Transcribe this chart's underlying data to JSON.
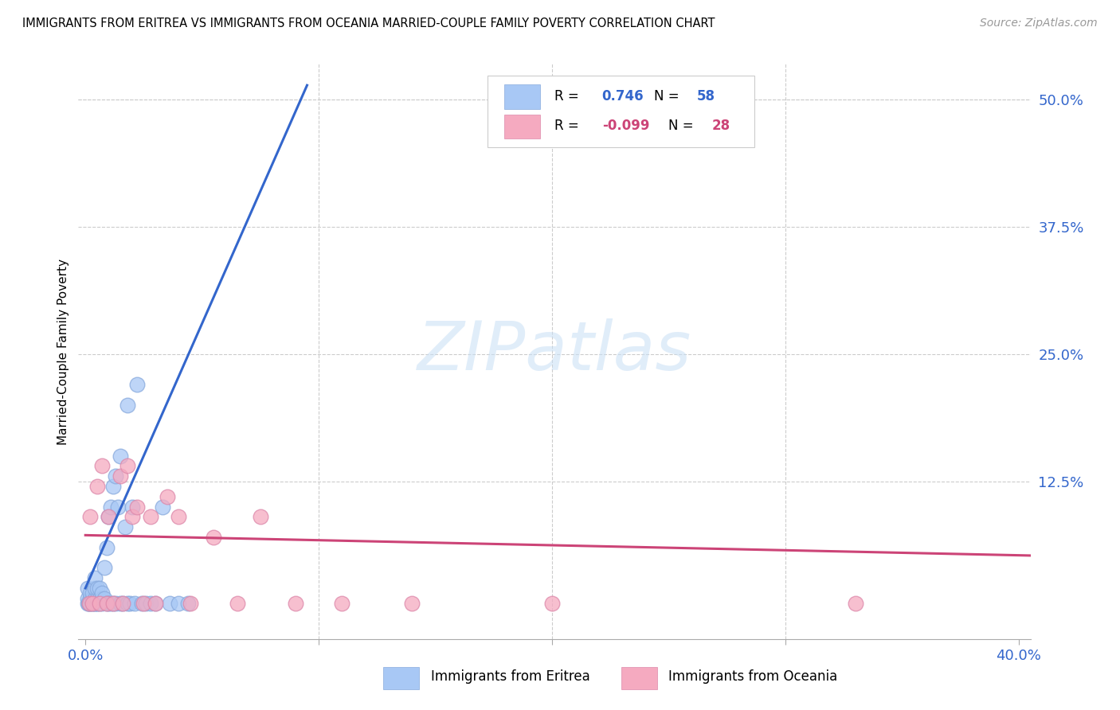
{
  "title": "IMMIGRANTS FROM ERITREA VS IMMIGRANTS FROM OCEANIA MARRIED-COUPLE FAMILY POVERTY CORRELATION CHART",
  "source": "Source: ZipAtlas.com",
  "ylabel": "Married-Couple Family Poverty",
  "xlim": [
    -0.003,
    0.405
  ],
  "ylim": [
    -0.03,
    0.535
  ],
  "xtick_positions": [
    0.0,
    0.1,
    0.2,
    0.3,
    0.4
  ],
  "xticklabels_show": [
    "0.0%",
    "",
    "",
    "",
    "40.0%"
  ],
  "ytick_right_positions": [
    0.0,
    0.125,
    0.25,
    0.375,
    0.5
  ],
  "ytick_right_labels": [
    "",
    "12.5%",
    "25.0%",
    "37.5%",
    "50.0%"
  ],
  "grid_color": "#cccccc",
  "background_color": "#ffffff",
  "watermark_text": "ZIPatlas",
  "legend_R_eritrea": "0.746",
  "legend_N_eritrea": "58",
  "legend_R_oceania": "-0.099",
  "legend_N_oceania": "28",
  "eritrea_color_face": "#a8c8f5",
  "eritrea_color_edge": "#88aadd",
  "oceania_color_face": "#f5aac0",
  "oceania_color_edge": "#dd88aa",
  "eritrea_line_color": "#3366cc",
  "oceania_line_color": "#cc4477",
  "legend_text_color_blue": "#3366cc",
  "legend_text_color_pink": "#cc4477",
  "tick_label_color": "#3366cc",
  "bottom_legend_label1": "Immigrants from Eritrea",
  "bottom_legend_label2": "Immigrants from Oceania",
  "eritrea_x": [
    0.0008,
    0.001,
    0.001,
    0.0012,
    0.0015,
    0.002,
    0.002,
    0.002,
    0.003,
    0.003,
    0.003,
    0.003,
    0.004,
    0.004,
    0.004,
    0.004,
    0.004,
    0.005,
    0.005,
    0.005,
    0.005,
    0.006,
    0.006,
    0.006,
    0.007,
    0.007,
    0.007,
    0.008,
    0.008,
    0.009,
    0.009,
    0.01,
    0.01,
    0.011,
    0.011,
    0.012,
    0.012,
    0.013,
    0.013,
    0.014,
    0.015,
    0.015,
    0.016,
    0.017,
    0.018,
    0.018,
    0.019,
    0.02,
    0.021,
    0.022,
    0.024,
    0.026,
    0.028,
    0.03,
    0.033,
    0.036,
    0.04,
    0.044
  ],
  "eritrea_y": [
    0.005,
    0.01,
    0.02,
    0.005,
    0.005,
    0.005,
    0.01,
    0.015,
    0.005,
    0.005,
    0.01,
    0.015,
    0.005,
    0.005,
    0.01,
    0.02,
    0.03,
    0.005,
    0.005,
    0.01,
    0.02,
    0.005,
    0.01,
    0.02,
    0.005,
    0.01,
    0.015,
    0.01,
    0.04,
    0.005,
    0.06,
    0.005,
    0.09,
    0.005,
    0.1,
    0.005,
    0.12,
    0.005,
    0.13,
    0.1,
    0.005,
    0.15,
    0.005,
    0.08,
    0.005,
    0.2,
    0.005,
    0.1,
    0.005,
    0.22,
    0.005,
    0.005,
    0.005,
    0.005,
    0.1,
    0.005,
    0.005,
    0.005
  ],
  "oceania_x": [
    0.0015,
    0.002,
    0.003,
    0.005,
    0.006,
    0.007,
    0.009,
    0.01,
    0.012,
    0.015,
    0.016,
    0.018,
    0.02,
    0.022,
    0.025,
    0.028,
    0.03,
    0.035,
    0.04,
    0.045,
    0.055,
    0.065,
    0.075,
    0.09,
    0.11,
    0.14,
    0.2,
    0.33
  ],
  "oceania_y": [
    0.005,
    0.09,
    0.005,
    0.12,
    0.005,
    0.14,
    0.005,
    0.09,
    0.005,
    0.13,
    0.005,
    0.14,
    0.09,
    0.1,
    0.005,
    0.09,
    0.005,
    0.11,
    0.09,
    0.005,
    0.07,
    0.005,
    0.09,
    0.005,
    0.005,
    0.005,
    0.005,
    0.005
  ],
  "eritrea_line_x": [
    0.0,
    0.105
  ],
  "eritrea_line_y_start": 0.02,
  "eritrea_line_slope": 5.2,
  "oceania_line_x": [
    0.0,
    0.405
  ],
  "oceania_line_y_start": 0.072,
  "oceania_line_y_end": 0.052
}
